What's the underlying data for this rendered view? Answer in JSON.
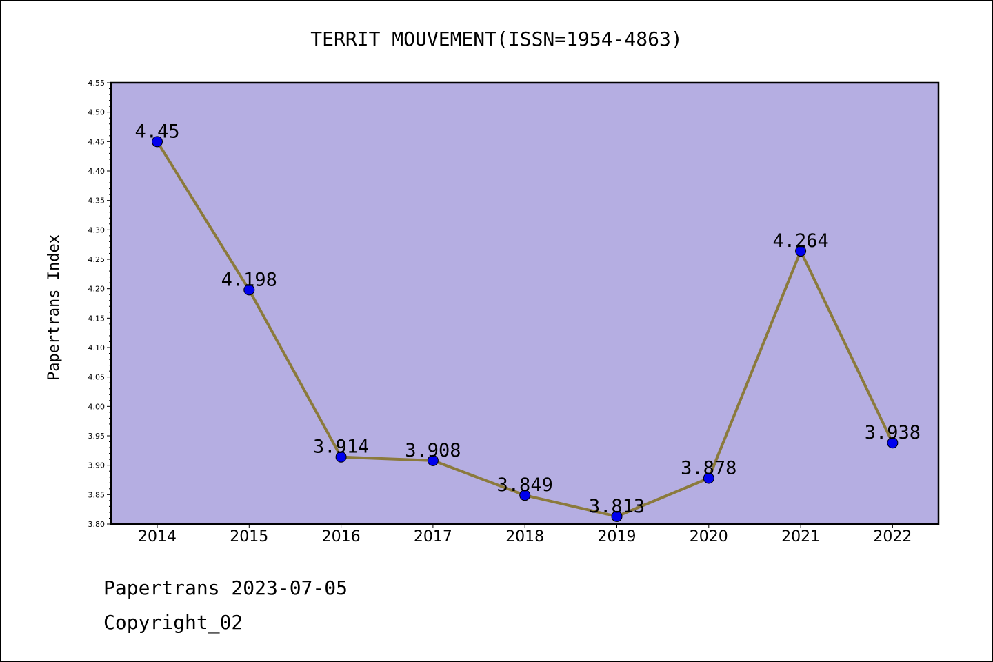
{
  "chart_data": {
    "type": "line",
    "title": "TERRIT MOUVEMENT(ISSN=1954-4863)",
    "xlabel": "",
    "ylabel": "Papertrans Index",
    "categories": [
      "2014",
      "2015",
      "2016",
      "2017",
      "2018",
      "2019",
      "2020",
      "2021",
      "2022"
    ],
    "series": [
      {
        "values": [
          4.45,
          4.198,
          3.914,
          3.908,
          3.849,
          3.813,
          3.878,
          4.264,
          3.938
        ],
        "labels": [
          "4.45",
          "4.198",
          "3.914",
          "3.908",
          "3.849",
          "3.813",
          "3.878",
          "4.264",
          "3.938"
        ]
      }
    ],
    "ylim": [
      3.8,
      4.55
    ],
    "yticks": [
      "3.80",
      "3.85",
      "3.90",
      "3.95",
      "4.00",
      "4.05",
      "4.10",
      "4.15",
      "4.20",
      "4.25",
      "4.30",
      "4.35",
      "4.40",
      "4.45",
      "4.50",
      "4.55"
    ],
    "grid": false,
    "colors": {
      "plot_background": "#b5aee2",
      "line": "#8b7a3c",
      "marker": "#0000ee"
    }
  },
  "footer": {
    "date_line": "Papertrans 2023-07-05",
    "copyright": "Copyright_02"
  }
}
